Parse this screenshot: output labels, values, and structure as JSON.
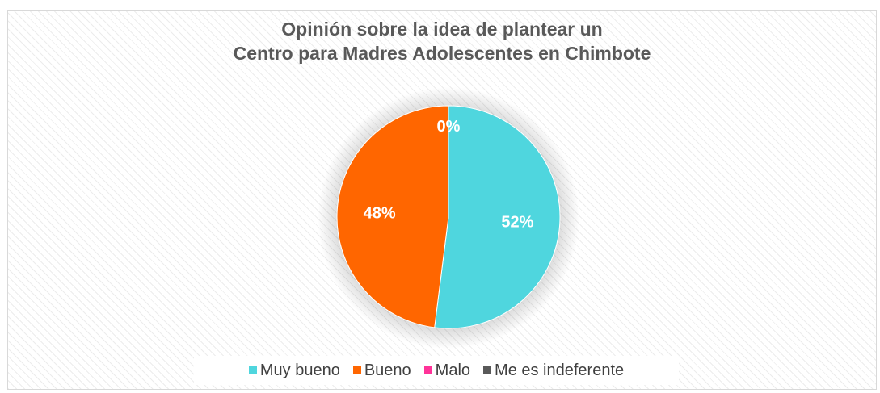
{
  "chart_data": {
    "type": "pie",
    "title_lines": [
      "Opinión sobre la idea de plantear un",
      "Centro para Madres Adolescentes en Chimbote"
    ],
    "categories": [
      "Muy bueno",
      "Bueno",
      "Malo",
      "Me es indeferente"
    ],
    "values": [
      52,
      48,
      0,
      0
    ],
    "data_labels": [
      "52%",
      "48%",
      "0%",
      ""
    ],
    "colors": [
      "#4fd6de",
      "#ff6600",
      "#ff3399",
      "#595959"
    ],
    "legend_position": "bottom"
  }
}
